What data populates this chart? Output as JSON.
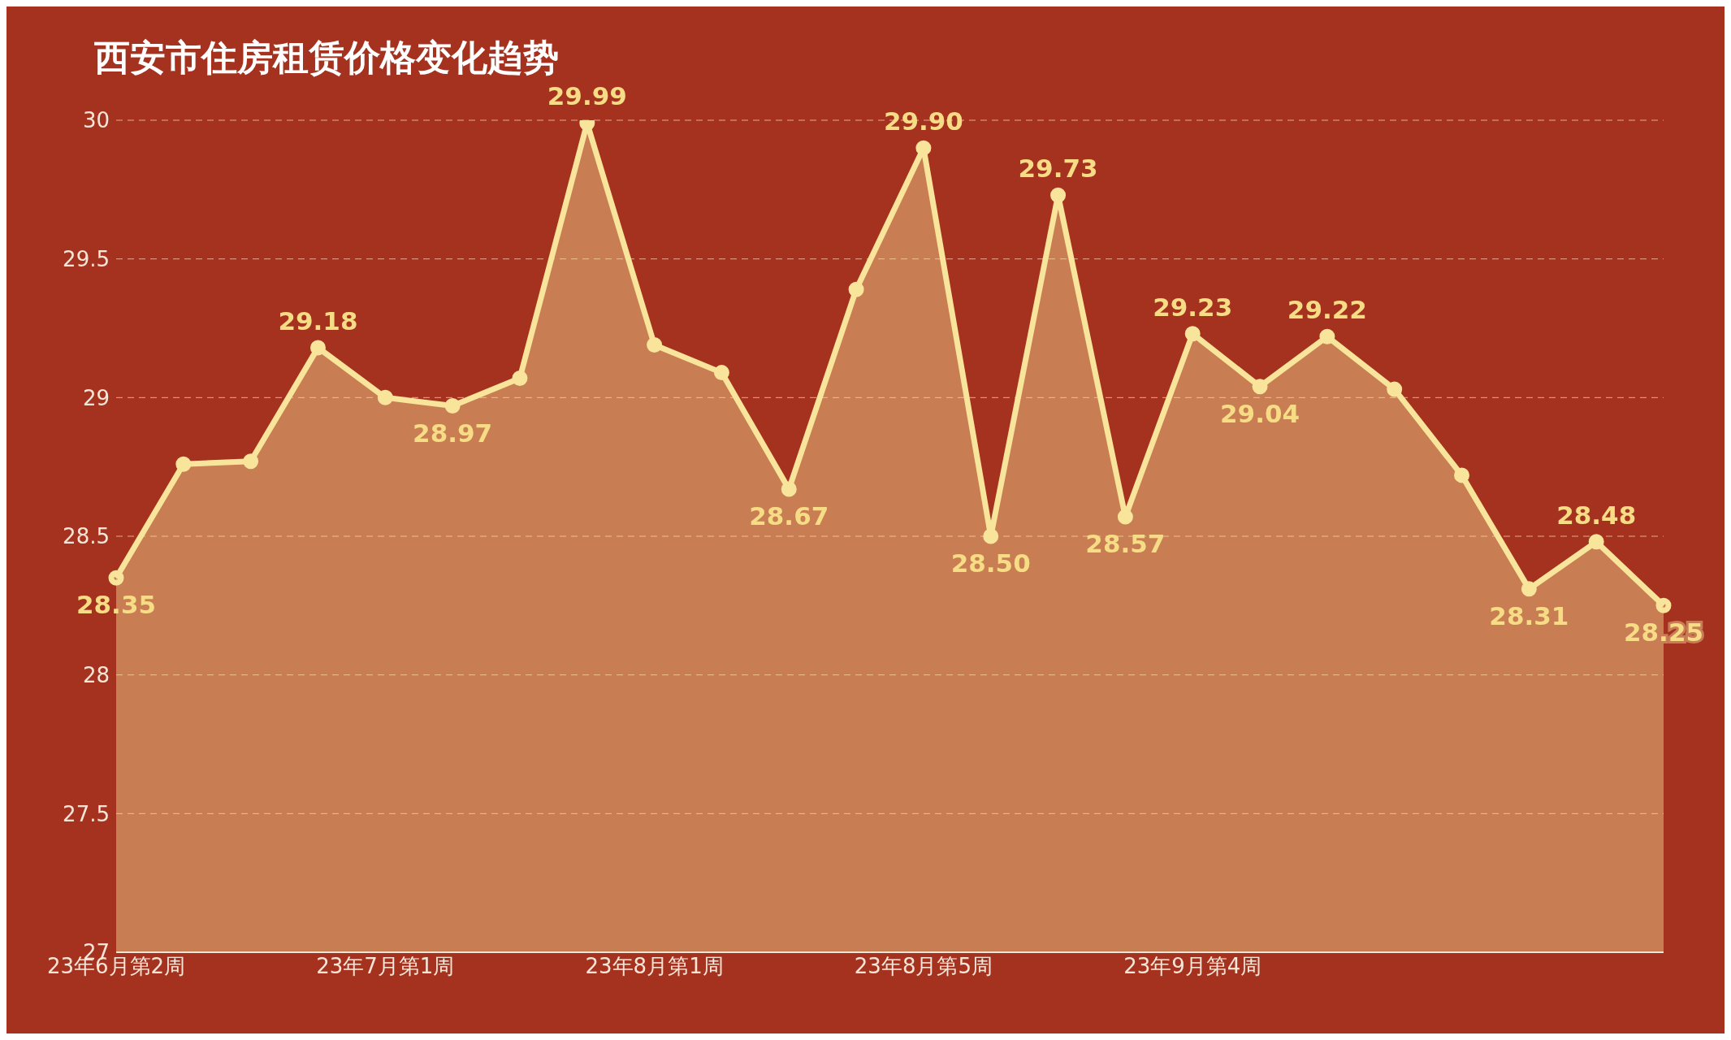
{
  "chart_data": {
    "type": "area",
    "title": "西安市住房租赁价格变化趋势",
    "categories": [
      "23年6月第2周",
      null,
      null,
      null,
      "23年7月第1周",
      null,
      null,
      null,
      "23年8月第1周",
      null,
      null,
      null,
      "23年8月第5周",
      null,
      null,
      null,
      "23年9月第4周",
      null,
      null,
      null,
      null,
      null,
      null,
      null
    ],
    "series": [
      {
        "color": "#f8e49a",
        "values": [
          28.35,
          28.76,
          28.77,
          29.18,
          29.0,
          28.97,
          29.07,
          29.99,
          29.19,
          29.09,
          28.67,
          29.39,
          29.9,
          28.5,
          29.73,
          28.57,
          29.23,
          29.04,
          29.22,
          29.03,
          28.72,
          28.31,
          28.48,
          28.25
        ],
        "value_labels": [
          "28.35",
          null,
          null,
          "29.18",
          null,
          "28.97",
          null,
          "29.99",
          null,
          null,
          "28.67",
          null,
          "29.90",
          "28.50",
          "29.73",
          "28.57",
          "29.23",
          "29.04",
          "29.22",
          null,
          null,
          "28.31",
          "28.48",
          "28.25"
        ]
      }
    ],
    "ylim": [
      27,
      30
    ],
    "yticks": [
      27,
      27.5,
      28,
      28.5,
      29,
      29.5,
      30
    ],
    "grid": "y",
    "marker": "circle"
  }
}
